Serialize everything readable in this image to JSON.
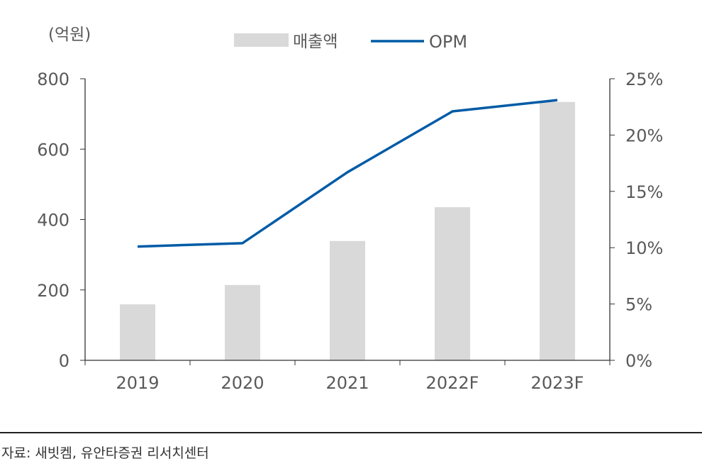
{
  "chart_data": {
    "type": "bar+line",
    "categories": [
      "2019",
      "2020",
      "2021",
      "2022F",
      "2023F"
    ],
    "series": [
      {
        "name": "매출액",
        "type": "bar",
        "axis": "left",
        "color": "#d9d9d9",
        "values": [
          159,
          214,
          339,
          435,
          734
        ]
      },
      {
        "name": "OPM",
        "type": "line",
        "axis": "right",
        "color": "#005ba6",
        "values": [
          10.1,
          10.4,
          16.7,
          22.1,
          23.1
        ]
      }
    ],
    "ylabel": "(억원)",
    "ylim": [
      0,
      800
    ],
    "yticks": [
      "0",
      "200",
      "400",
      "600",
      "800"
    ],
    "y2lim": [
      0,
      25
    ],
    "y2ticks": [
      "0%",
      "5%",
      "10%",
      "15%",
      "20%",
      "25%"
    ],
    "legend_position": "top-center",
    "grid": false
  },
  "source": "자료: 새빗켐, 유안타증권 리서치센터"
}
